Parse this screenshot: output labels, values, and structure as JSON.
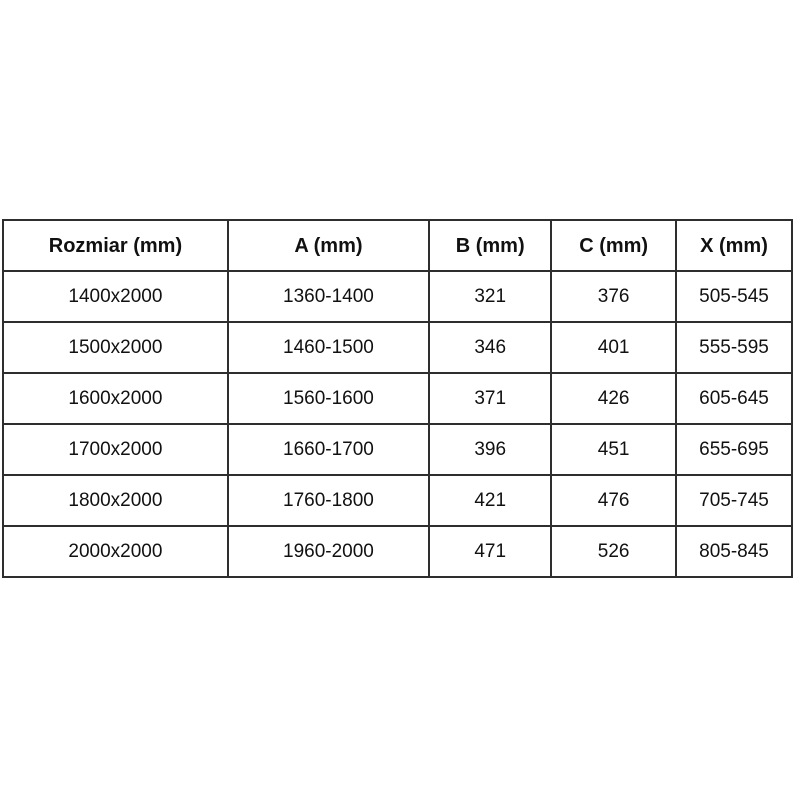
{
  "page": {
    "background_color": "#ffffff",
    "text_color": "#111111",
    "border_color": "#2e2e2e"
  },
  "table": {
    "name": "size-specification-table",
    "columns": [
      "Rozmiar (mm)",
      "A (mm)",
      "B (mm)",
      "C (mm)",
      "X (mm)"
    ],
    "rows": [
      [
        "1400x2000",
        "1360-1400",
        "321",
        "376",
        "505-545"
      ],
      [
        "1500x2000",
        "1460-1500",
        "346",
        "401",
        "555-595"
      ],
      [
        "1600x2000",
        "1560-1600",
        "371",
        "426",
        "605-645"
      ],
      [
        "1700x2000",
        "1660-1700",
        "396",
        "451",
        "655-695"
      ],
      [
        "1800x2000",
        "1760-1800",
        "421",
        "476",
        "705-745"
      ],
      [
        "2000x2000",
        "1960-2000",
        "471",
        "526",
        "805-845"
      ]
    ]
  }
}
